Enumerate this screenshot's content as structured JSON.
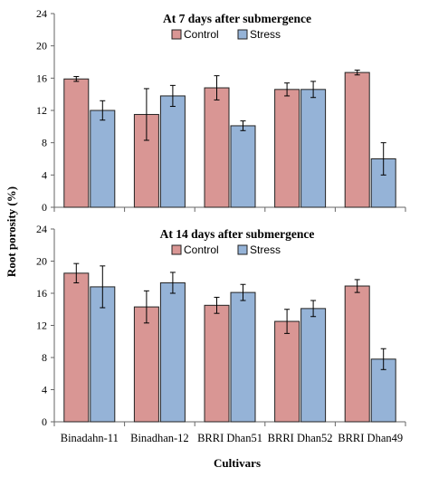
{
  "chart_data": {
    "type": "bar",
    "ylabel": "Root porosity (%)",
    "xlabel": "Cultivars",
    "categories": [
      "Binadahn-11",
      "Binadhan-12",
      "BRRI Dhan51",
      "BRRI Dhan52",
      "BRRI Dhan49"
    ],
    "colors": {
      "Control": "#d99694",
      "Stress": "#95b3d7",
      "edge": "#222222"
    },
    "panels": [
      {
        "title": "At 7 days after submergence",
        "ylim": [
          0,
          24
        ],
        "yticks": [
          0,
          4,
          8,
          12,
          16,
          20,
          24
        ],
        "legend_position": "top-center",
        "series": [
          {
            "name": "Control",
            "values": [
              15.9,
              11.5,
              14.8,
              14.6,
              16.7
            ],
            "errors": [
              0.3,
              3.2,
              1.5,
              0.8,
              0.3
            ]
          },
          {
            "name": "Stress",
            "values": [
              12.0,
              13.8,
              10.1,
              14.6,
              6.0
            ],
            "errors": [
              1.2,
              1.3,
              0.6,
              1.0,
              2.0
            ]
          }
        ]
      },
      {
        "title": "At 14 days after submergence",
        "ylim": [
          0,
          24
        ],
        "yticks": [
          0,
          4,
          8,
          12,
          16,
          20,
          24
        ],
        "legend_position": "top-center",
        "series": [
          {
            "name": "Control",
            "values": [
              18.5,
              14.3,
              14.5,
              12.5,
              16.9
            ],
            "errors": [
              1.2,
              2.0,
              1.0,
              1.5,
              0.8
            ]
          },
          {
            "name": "Stress",
            "values": [
              16.8,
              17.3,
              16.1,
              14.1,
              7.8
            ],
            "errors": [
              2.6,
              1.3,
              1.0,
              1.0,
              1.3
            ]
          }
        ]
      }
    ]
  }
}
